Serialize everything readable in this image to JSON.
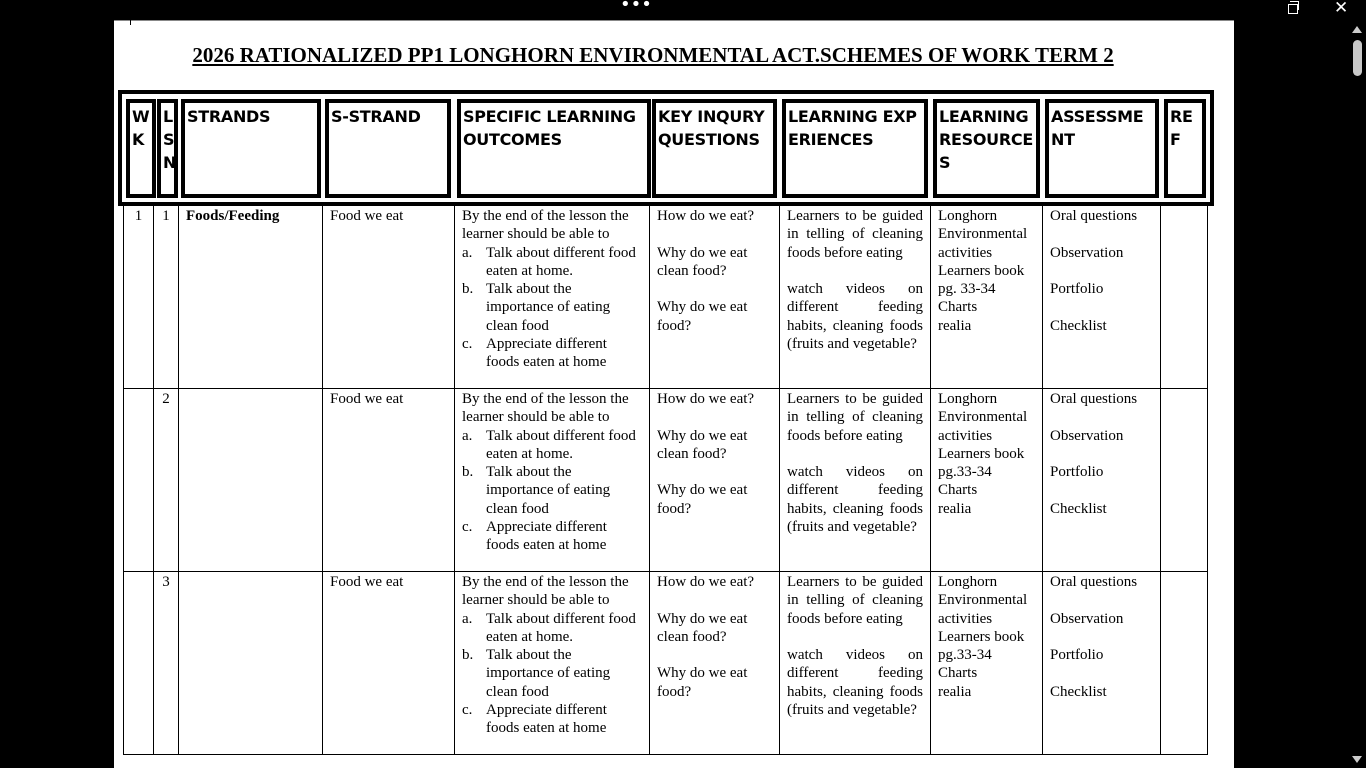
{
  "window": {
    "menu_icon": "more-dots-icon",
    "restore_icon": "restore-icon",
    "close_icon": "close-icon"
  },
  "title": "2026 RATIONALIZED PP1 LONGHORN ENVIRONMENTAL ACT.SCHEMES OF WORK TERM 2",
  "headers": [
    "WK",
    "LSN",
    "STRANDS",
    "S-STRAND",
    "SPECIFIC LEARNING OUTCOMES",
    "KEY INQURY QUESTIONS",
    "LEARNING EXPERIENCES",
    "LEARNING RESOURCES",
    "ASSESSMENT",
    "REF"
  ],
  "rows": [
    {
      "wk": "1",
      "lsn": "1",
      "strand": "Foods/Feeding",
      "sub_strand": "Food we eat",
      "outcomes": {
        "intro": "By the end of the lesson the learner should be able to",
        "items": [
          {
            "m": "a.",
            "t": "Talk about different food eaten at home."
          },
          {
            "m": "b.",
            "t": "Talk about the importance of eating clean food"
          },
          {
            "m": "c.",
            "t": "Appreciate different foods eaten at home"
          }
        ]
      },
      "questions": [
        "How do we eat?",
        "Why do we eat clean food?",
        "Why do we eat food?"
      ],
      "experiences": [
        "Learners to be guided in telling of cleaning foods before eating",
        "watch videos on different feeding habits, cleaning foods (fruits and vegetable?"
      ],
      "resources": [
        "Longhorn Environmental activities",
        "Learners book pg. 33-34",
        "Charts",
        "realia"
      ],
      "assessment": [
        "Oral questions",
        "Observation",
        "Portfolio",
        "Checklist"
      ],
      "ref": ""
    },
    {
      "wk": "",
      "lsn": "2",
      "strand": "",
      "sub_strand": "Food we eat",
      "outcomes": {
        "intro": "By the end of the lesson the learner should be able to",
        "items": [
          {
            "m": "a.",
            "t": "Talk about different food eaten at home."
          },
          {
            "m": "b.",
            "t": "Talk about the importance of eating clean food"
          },
          {
            "m": "c.",
            "t": "Appreciate different foods eaten at home"
          }
        ]
      },
      "questions": [
        "How do we eat?",
        "Why do we eat clean food?",
        "Why do we eat food?"
      ],
      "experiences": [
        "Learners to be guided in telling of cleaning foods before eating",
        "watch videos on different feeding habits, cleaning foods (fruits and vegetable?"
      ],
      "resources": [
        "Longhorn Environmental activities",
        "Learners book pg.33-34",
        "Charts",
        "realia"
      ],
      "assessment": [
        "Oral questions",
        "Observation",
        "Portfolio",
        "Checklist"
      ],
      "ref": ""
    },
    {
      "wk": "",
      "lsn": "3",
      "strand": "",
      "sub_strand": "Food we eat",
      "outcomes": {
        "intro": "By the end of the lesson the learner should be able to",
        "items": [
          {
            "m": "a.",
            "t": "Talk about different food eaten at home."
          },
          {
            "m": "b.",
            "t": "Talk about the importance of eating clean food"
          },
          {
            "m": "c.",
            "t": "Appreciate different foods eaten at home"
          }
        ]
      },
      "questions": [
        "How do we eat?",
        "Why do we eat clean food?",
        "Why do we eat food?"
      ],
      "experiences": [
        "Learners to be guided in telling of cleaning foods before eating",
        "watch videos on different feeding habits, cleaning foods (fruits and vegetable?"
      ],
      "resources": [
        "Longhorn Environmental activities",
        "Learners book pg.33-34",
        "Charts",
        "realia"
      ],
      "assessment": [
        "Oral questions",
        "Observation",
        "Portfolio",
        "Checklist"
      ],
      "ref": ""
    }
  ]
}
